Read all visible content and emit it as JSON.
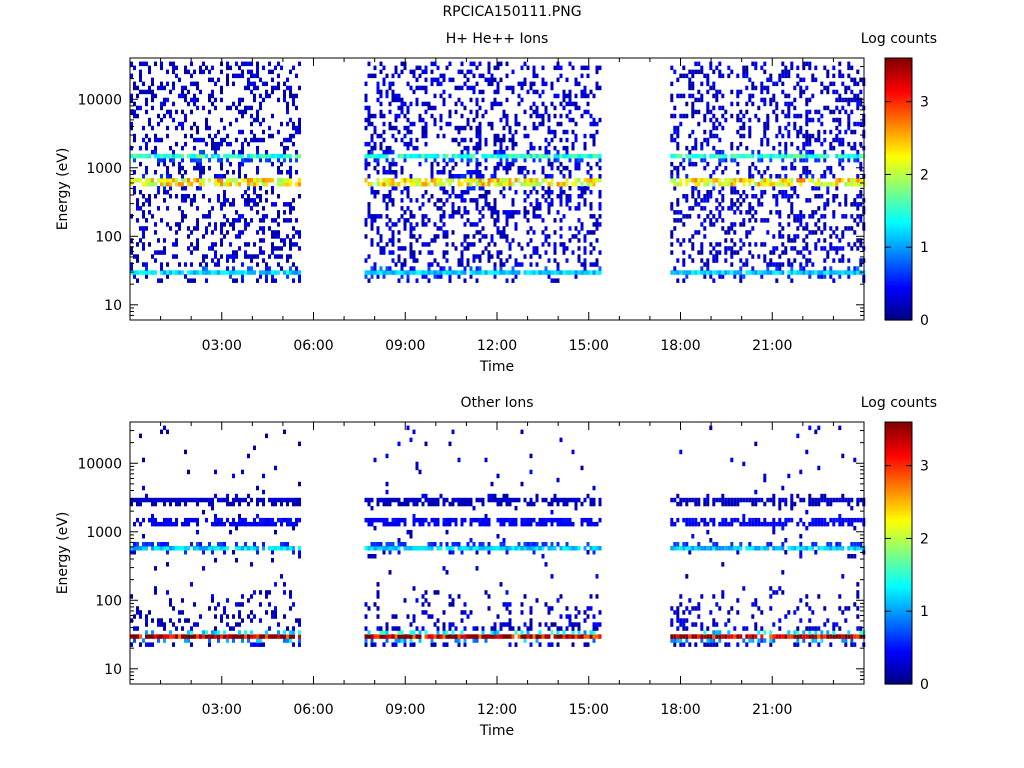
{
  "page_title": "RPCICA150111.PNG",
  "colorbar_ticks": [
    "0",
    "1",
    "2",
    "3"
  ],
  "chart_data": [
    {
      "type": "heatmap",
      "title": "H+ He++ Ions",
      "xlabel": "Time",
      "ylabel": "Energy (eV)",
      "colorbar_label": "Log counts",
      "colorbar_range": [
        0,
        3.6
      ],
      "colormap": "jet",
      "xlim_hours": [
        0,
        24
      ],
      "ylim_eV": [
        6,
        40000
      ],
      "y_scale": "log",
      "x_ticks": [
        "03:00",
        "06:00",
        "09:00",
        "12:00",
        "15:00",
        "18:00",
        "21:00"
      ],
      "y_ticks": [
        "10",
        "100",
        "1000",
        "10000"
      ],
      "data_coverage": [
        [
          "00:00",
          "05:30"
        ],
        [
          "07:40",
          "15:20"
        ],
        [
          "17:40",
          "24:00"
        ]
      ],
      "bands": [
        {
          "energy_eV": 30,
          "log_counts": 1.2
        },
        {
          "energy_eV": 620,
          "log_counts": 3.2
        },
        {
          "energy_eV": 1450,
          "log_counts": 1.6
        }
      ]
    },
    {
      "type": "heatmap",
      "title": "Other Ions",
      "xlabel": "Time",
      "ylabel": "Energy (eV)",
      "colorbar_label": "Log counts",
      "colorbar_range": [
        0,
        3.6
      ],
      "colormap": "jet",
      "xlim_hours": [
        0,
        24
      ],
      "ylim_eV": [
        6,
        40000
      ],
      "y_scale": "log",
      "x_ticks": [
        "03:00",
        "06:00",
        "09:00",
        "12:00",
        "15:00",
        "18:00",
        "21:00"
      ],
      "y_ticks": [
        "10",
        "100",
        "1000",
        "10000"
      ],
      "data_coverage": [
        [
          "00:00",
          "05:30"
        ],
        [
          "07:40",
          "15:20"
        ],
        [
          "17:40",
          "24:00"
        ]
      ],
      "bands": [
        {
          "energy_eV": 30,
          "log_counts": 3.4
        },
        {
          "energy_eV": 600,
          "log_counts": 1.3
        },
        {
          "energy_eV": 1400,
          "log_counts": 0.6
        },
        {
          "energy_eV": 2800,
          "log_counts": 0.3
        }
      ]
    }
  ]
}
